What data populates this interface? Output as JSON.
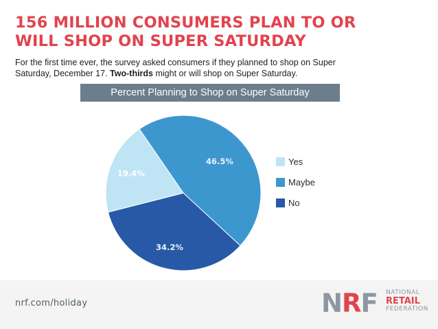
{
  "headline": {
    "line1": "156 MILLION CONSUMERS PLAN TO OR",
    "line2": "WILL SHOP ON SUPER SATURDAY"
  },
  "subtitle": {
    "text": "For the first time ever, the survey asked consumers if they planned to shop on Super Saturday, December 17.",
    "emphasis": "Two-thirds",
    "text_after": "might or will shop on Super Saturday."
  },
  "chart_data": {
    "type": "pie",
    "title": "Percent Planning to Shop on Super Saturday",
    "categories": [
      "Yes",
      "Maybe",
      "No"
    ],
    "values": [
      19.4,
      46.5,
      34.2
    ],
    "labels": [
      "19.4%",
      "46.5%",
      "34.2%"
    ],
    "colors": [
      "#bfe5f5",
      "#3d97cf",
      "#2759a6"
    ],
    "legend_position": "right"
  },
  "footer": {
    "url": "nrf.com/holiday",
    "logo": {
      "letters": "NRF",
      "line1": "NATIONAL",
      "line2": "RETAIL",
      "line3": "FEDERATION"
    }
  },
  "colors": {
    "headline": "#e2434d",
    "header_bar": "#6c7d8c",
    "footer_bg": "#f4f4f4"
  }
}
